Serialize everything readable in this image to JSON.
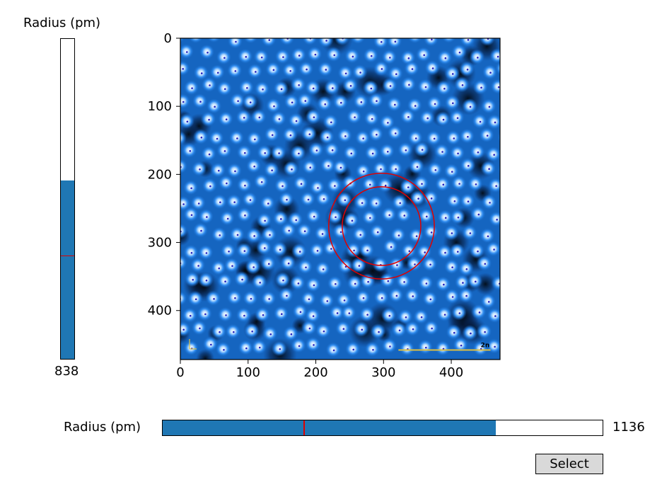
{
  "vertical_slider": {
    "label": "Radius (pm)",
    "value_text": "838",
    "fill_fraction": 0.557,
    "marker_fraction": 0.32,
    "fill_color": "#1f77b4",
    "marker_color": "#e00000"
  },
  "horizontal_slider": {
    "label": "Radius (pm)",
    "value_text": "1136",
    "fill_fraction": 0.757,
    "marker_fraction": 0.32,
    "fill_color": "#1f77b4",
    "marker_color": "#e00000"
  },
  "select_button": {
    "label": "Select"
  },
  "chart_data": {
    "type": "image",
    "x_ticks": [
      0,
      100,
      200,
      300,
      400
    ],
    "y_ticks": [
      0,
      100,
      200,
      300,
      400
    ],
    "xlim": [
      0,
      472
    ],
    "ylim": [
      472,
      0
    ],
    "colormap": "black-blue-white",
    "circles": [
      {
        "cx": 297,
        "cy": 276,
        "r": 78,
        "color": "#e00000"
      },
      {
        "cx": 297,
        "cy": 276,
        "r": 58,
        "color": "#e00000"
      }
    ],
    "scale_bar": {
      "x0": 322,
      "x1": 458,
      "y": 458,
      "color": "#e0c040",
      "label": "2n"
    }
  }
}
